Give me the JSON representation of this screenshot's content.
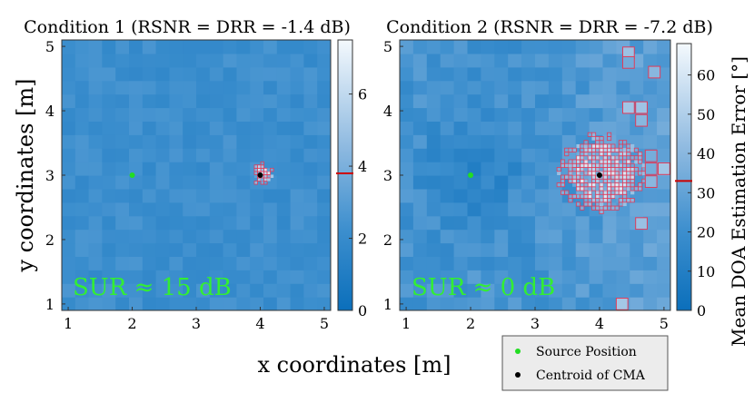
{
  "chart_data": [
    {
      "type": "heatmap",
      "title": "Condition 1 (RSNR = DRR = -1.4 dB)",
      "xlabel": "x coordinates [m]",
      "ylabel": "y coordinates [m]",
      "xlim": [
        0.9,
        5.1
      ],
      "ylim": [
        0.9,
        5.1
      ],
      "xticks": [
        "1",
        "2",
        "3",
        "4",
        "5"
      ],
      "yticks": [
        "1",
        "2",
        "3",
        "4",
        "5"
      ],
      "colorbar": {
        "range": [
          0,
          7.5
        ],
        "ticks": [
          "0",
          "2",
          "4",
          "6"
        ],
        "marker": 3.8,
        "label": ""
      },
      "annotation": "SUR ≈ 15 dB",
      "source_position": [
        2,
        3
      ],
      "cma_centroid": [
        4,
        3
      ],
      "background_error": 2.2,
      "cma_radius": 0.12
    },
    {
      "type": "heatmap",
      "title": "Condition 2 (RSNR = DRR = -7.2 dB)",
      "xlabel": "x coordinates [m]",
      "ylabel": "",
      "xlim": [
        0.9,
        5.1
      ],
      "ylim": [
        0.9,
        5.1
      ],
      "xticks": [
        "1",
        "2",
        "3",
        "4",
        "5"
      ],
      "yticks": [
        "1",
        "2",
        "3",
        "4",
        "5"
      ],
      "colorbar": {
        "range": [
          0,
          68
        ],
        "ticks": [
          "0",
          "10",
          "20",
          "30",
          "40",
          "50",
          "60"
        ],
        "marker": 33,
        "label": "Mean DOA Estimation Error [°]"
      },
      "annotation": "SUR ≈ 0 dB",
      "source_position": [
        2,
        3
      ],
      "cma_centroid": [
        4,
        3
      ],
      "background_error": 22,
      "cma_radius": 0.45
    }
  ],
  "legend": {
    "entries": [
      {
        "label": "Source Position",
        "color": "#22dd22"
      },
      {
        "label": "Centroid of CMA",
        "color": "#000000"
      }
    ]
  },
  "xlabel_shared": "x coordinates [m]",
  "colors": {
    "cma_outline": "#e03c5a",
    "annotation": "#33ee33",
    "colorbar_marker": "#cc0000"
  }
}
